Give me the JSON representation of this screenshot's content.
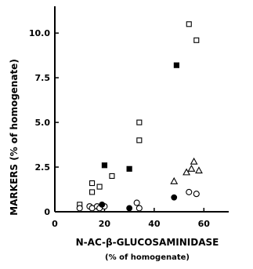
{
  "chart_data": {
    "type": "scatter",
    "title": "",
    "xlabel": "N-AC-β-GLUCOSAMINIDASE",
    "xlabel_sub": "(% of homogenate)",
    "ylabel": "MARKERS (% of homogenate)",
    "xlim": [
      0,
      70
    ],
    "ylim": [
      0,
      11.5
    ],
    "xticks": [
      0,
      20,
      40,
      60
    ],
    "xtick_labels": [
      "0",
      "20",
      "40",
      "60"
    ],
    "yticks": [
      0,
      2.5,
      5.0,
      7.5,
      10.0
    ],
    "ytick_labels": [
      "0",
      "2.5",
      "5.0",
      "7.5",
      "10.0"
    ],
    "grid": false,
    "series": [
      {
        "marker": "open-square",
        "x": [
          10,
          15,
          15,
          18,
          23,
          34,
          34,
          54,
          57
        ],
        "y": [
          0.4,
          1.1,
          1.6,
          1.4,
          2.0,
          4.0,
          5.0,
          10.5,
          9.6
        ]
      },
      {
        "marker": "filled-square",
        "x": [
          20,
          30,
          49
        ],
        "y": [
          2.6,
          2.4,
          8.2
        ]
      },
      {
        "marker": "open-circle",
        "x": [
          10,
          14,
          15,
          17,
          18,
          20,
          33,
          34,
          54,
          57
        ],
        "y": [
          0.2,
          0.3,
          0.2,
          0.3,
          0.2,
          0.3,
          0.5,
          0.2,
          1.1,
          1.0
        ]
      },
      {
        "marker": "filled-circle",
        "x": [
          19,
          30,
          48
        ],
        "y": [
          0.4,
          0.2,
          0.8
        ]
      },
      {
        "marker": "open-triangle",
        "x": [
          48,
          53,
          55,
          56,
          58
        ],
        "y": [
          1.7,
          2.2,
          2.4,
          2.8,
          2.3
        ]
      }
    ]
  }
}
